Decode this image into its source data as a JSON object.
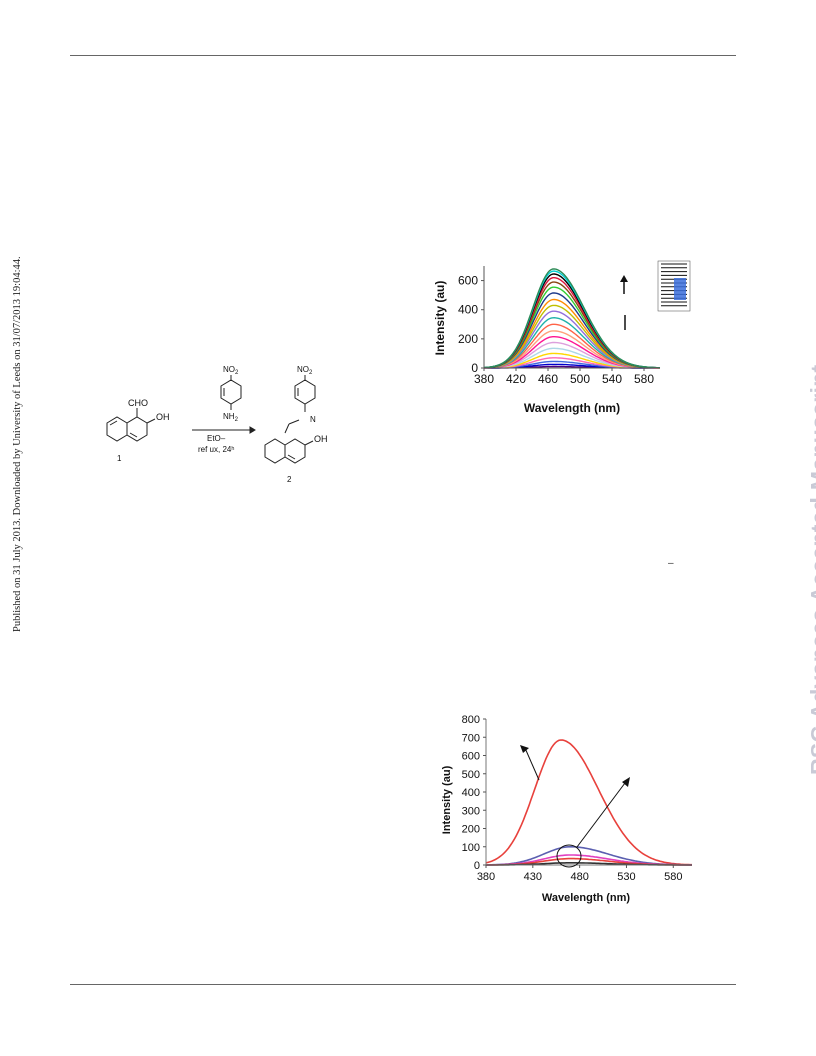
{
  "page": {
    "side_left_text": "Published on 31 July 2013. Downloaded by University of Leeds on 31/07/2013 19:04:44.",
    "watermark": "RSC Advances Accepted Manuscript",
    "small_dash": "–"
  },
  "scheme": {
    "reactant_substituents": [
      "CHO",
      "OH"
    ],
    "reagent_top": "NO",
    "reagent_top_sub": "2",
    "reagent_amine": "NH",
    "reagent_amine_sub": "2",
    "conditions_line1": "EtO–",
    "conditions_line2": "ref ux, 24ʰ",
    "product_top": "NO",
    "product_top_sub": "2",
    "product_n": "N",
    "product_oh": "OH",
    "label_1": "1",
    "label_2": "2"
  },
  "chart_data": [
    {
      "type": "line",
      "xlabel": "Wavelength (nm)",
      "ylabel": "Intensity (au)",
      "xlim": [
        380,
        600
      ],
      "ylim": [
        0,
        700
      ],
      "x_ticks": [
        "380",
        "420",
        "460",
        "500",
        "540",
        "580"
      ],
      "y_ticks": [
        "0",
        "200",
        "400",
        "600"
      ],
      "annotations": [
        "up-arrow",
        "bar"
      ],
      "series": [
        {
          "peak_x": 467,
          "peak_y": 10,
          "color": "#4b0082"
        },
        {
          "peak_x": 467,
          "peak_y": 25,
          "color": "#0000cd"
        },
        {
          "peak_x": 467,
          "peak_y": 45,
          "color": "#4169e1"
        },
        {
          "peak_x": 467,
          "peak_y": 70,
          "color": "#ff69b4"
        },
        {
          "peak_x": 467,
          "peak_y": 100,
          "color": "#ffd700"
        },
        {
          "peak_x": 467,
          "peak_y": 135,
          "color": "#add8e6"
        },
        {
          "peak_x": 467,
          "peak_y": 175,
          "color": "#dda0dd"
        },
        {
          "peak_x": 467,
          "peak_y": 215,
          "color": "#ff1493"
        },
        {
          "peak_x": 467,
          "peak_y": 255,
          "color": "#ffa07a"
        },
        {
          "peak_x": 467,
          "peak_y": 300,
          "color": "#ff6347"
        },
        {
          "peak_x": 467,
          "peak_y": 345,
          "color": "#20b2aa"
        },
        {
          "peak_x": 467,
          "peak_y": 390,
          "color": "#9370db"
        },
        {
          "peak_x": 467,
          "peak_y": 430,
          "color": "#c0c000"
        },
        {
          "peak_x": 467,
          "peak_y": 470,
          "color": "#ff8c00"
        },
        {
          "peak_x": 467,
          "peak_y": 515,
          "color": "#1e3a8a"
        },
        {
          "peak_x": 467,
          "peak_y": 555,
          "color": "#32cd32"
        },
        {
          "peak_x": 467,
          "peak_y": 590,
          "color": "#8b4513"
        },
        {
          "peak_x": 467,
          "peak_y": 620,
          "color": "#dc143c"
        },
        {
          "peak_x": 467,
          "peak_y": 645,
          "color": "#000000"
        },
        {
          "peak_x": 467,
          "peak_y": 665,
          "color": "#00ced1"
        },
        {
          "peak_x": 467,
          "peak_y": 680,
          "color": "#2e8b57"
        }
      ]
    },
    {
      "type": "line",
      "xlabel": "Wavelength (nm)",
      "ylabel": "Intensity (au)",
      "xlim": [
        380,
        600
      ],
      "ylim": [
        0,
        800
      ],
      "x_ticks": [
        "380",
        "430",
        "480",
        "530",
        "580"
      ],
      "y_ticks": [
        "0",
        "100",
        "200",
        "300",
        "400",
        "500",
        "600",
        "700",
        "800"
      ],
      "series": [
        {
          "peak_x": 460,
          "peak_y": 685,
          "color": "#e8413c"
        },
        {
          "peak_x": 470,
          "peak_y": 100,
          "color": "#5b5fb0"
        },
        {
          "peak_x": 470,
          "peak_y": 55,
          "color": "#e040c0"
        },
        {
          "peak_x": 470,
          "peak_y": 35,
          "color": "#e8413c"
        },
        {
          "peak_x": 470,
          "peak_y": 12,
          "color": "#333333"
        }
      ]
    }
  ]
}
